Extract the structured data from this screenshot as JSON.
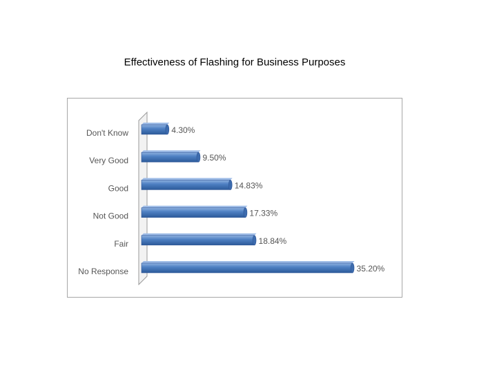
{
  "chart_data": {
    "type": "bar",
    "orientation": "horizontal",
    "title": "Effectiveness of Flashing for Business Purposes",
    "categories": [
      "Don't Know",
      "Very Good",
      "Good",
      "Not Good",
      "Fair",
      "No Response"
    ],
    "values": [
      4.3,
      9.5,
      14.83,
      17.33,
      18.84,
      35.2
    ],
    "value_labels": [
      "4.30%",
      "9.50%",
      "14.83%",
      "17.33%",
      "18.84%",
      "35.20%"
    ],
    "xlim": [
      0,
      36
    ],
    "grid": false,
    "legend": "none",
    "bar_color": "#4a7ebb",
    "bar_edge_color": "#2f5597",
    "three_d": true
  }
}
